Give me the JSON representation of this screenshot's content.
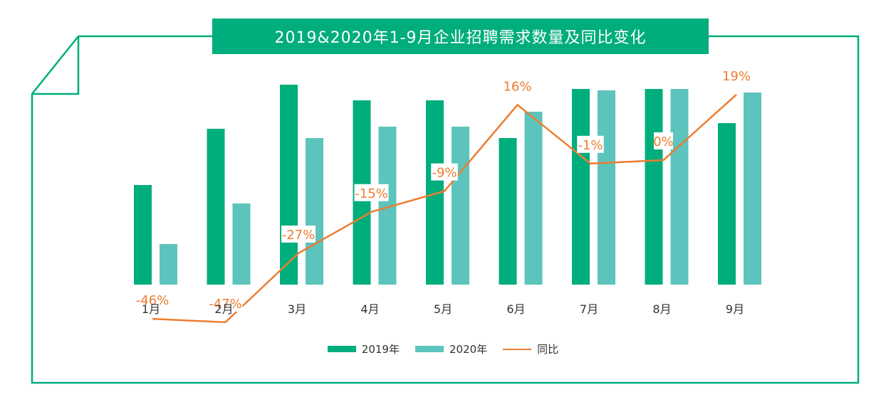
{
  "chart_data": {
    "type": "bar",
    "title": "2019&2020年1-9月企业招聘需求数量及同比变化",
    "categories": [
      "1月",
      "2月",
      "3月",
      "4月",
      "5月",
      "6月",
      "7月",
      "8月",
      "9月"
    ],
    "series": [
      {
        "name": "2019年",
        "color": "#00ad7c",
        "values": [
          140,
          219,
          281,
          259,
          259,
          206,
          275,
          275,
          227
        ]
      },
      {
        "name": "2020年",
        "color": "#5cc4bc",
        "values": [
          57,
          114,
          206,
          222,
          222,
          243,
          273,
          275,
          270
        ]
      }
    ],
    "line_series": {
      "name": "同比",
      "color": "#ed7d31",
      "values": [
        -46,
        -47,
        -27,
        -15,
        -9,
        16,
        -1,
        0,
        19
      ],
      "labels": [
        "-46%",
        "-47%",
        "-27%",
        "-15%",
        "-9%",
        "16%",
        "-1%",
        "0%",
        "19%"
      ]
    },
    "ylim": [
      0,
      300
    ],
    "xlabel": "",
    "ylabel": "",
    "legend_position": "bottom"
  },
  "legend": {
    "bar2019": "2019年",
    "bar2020": "2020年",
    "line": "同比"
  },
  "colors": {
    "frame": "#00ad7c",
    "bar2019": "#00ad7c",
    "bar2020": "#5cc4bc",
    "line": "#ed7d31"
  }
}
